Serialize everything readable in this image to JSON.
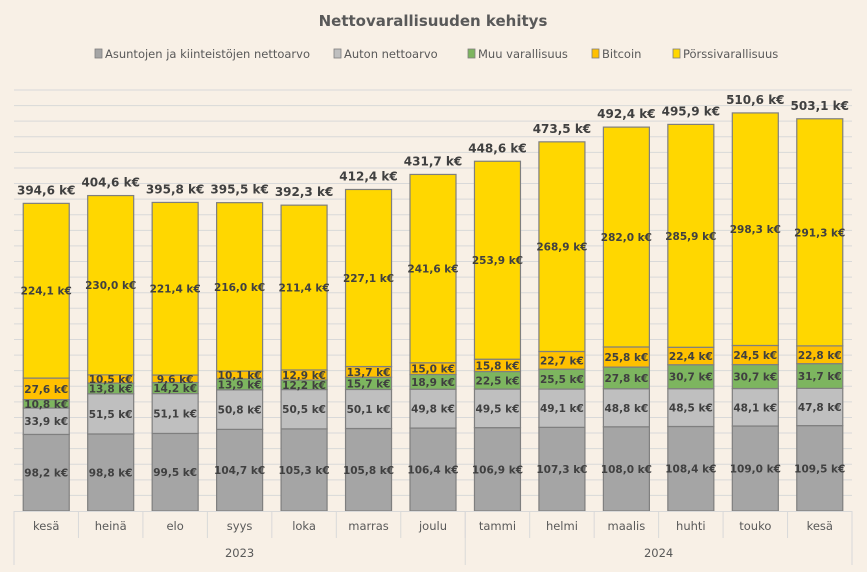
{
  "chart_data": {
    "type": "bar",
    "stacked": true,
    "title": "Nettovarallisuuden kehitys",
    "xlabel": "",
    "ylabel": "",
    "ylim": [
      0,
      540
    ],
    "y_gridline_step": 20,
    "grid": true,
    "legend_position": "top",
    "unit_suffix": " k€",
    "categories": [
      "kesä",
      "heinä",
      "elo",
      "syys",
      "loka",
      "marras",
      "joulu",
      "tammi",
      "helmi",
      "maalis",
      "huhti",
      "touko",
      "kesä"
    ],
    "year_groups": [
      {
        "label": "2023",
        "count": 7
      },
      {
        "label": "2024",
        "count": 6
      }
    ],
    "series": [
      {
        "name": "Asuntojen ja kiinteistöjen nettoarvo",
        "color": "#A5A5A5",
        "values": [
          98.2,
          98.8,
          99.5,
          104.7,
          105.3,
          105.8,
          106.4,
          106.9,
          107.3,
          108.0,
          108.4,
          109.0,
          109.5
        ]
      },
      {
        "name": "Auton nettoarvo",
        "color": "#BFBFBF",
        "values": [
          33.9,
          51.5,
          51.1,
          50.8,
          50.5,
          50.1,
          49.8,
          49.5,
          49.1,
          48.8,
          48.5,
          48.1,
          47.8
        ]
      },
      {
        "name": "Muu varallisuus",
        "color": "#7DB55F",
        "values": [
          10.8,
          13.8,
          14.2,
          13.9,
          12.2,
          15.7,
          18.9,
          22.5,
          25.5,
          27.8,
          30.7,
          30.7,
          31.7
        ]
      },
      {
        "name": "Bitcoin",
        "color": "#FFC000",
        "values": [
          27.6,
          10.5,
          9.6,
          10.1,
          12.9,
          13.7,
          15.0,
          15.8,
          22.7,
          25.8,
          22.4,
          24.5,
          22.8
        ]
      },
      {
        "name": "Pörssivarallisuus",
        "color": "#FFD700",
        "values": [
          224.1,
          230.0,
          221.4,
          216.0,
          211.4,
          227.1,
          241.6,
          253.9,
          268.9,
          282.0,
          285.9,
          298.3,
          291.3
        ]
      }
    ],
    "totals": [
      394.6,
      404.6,
      395.8,
      395.5,
      392.3,
      412.4,
      431.7,
      448.6,
      473.5,
      492.4,
      495.9,
      510.6,
      503.1
    ]
  }
}
